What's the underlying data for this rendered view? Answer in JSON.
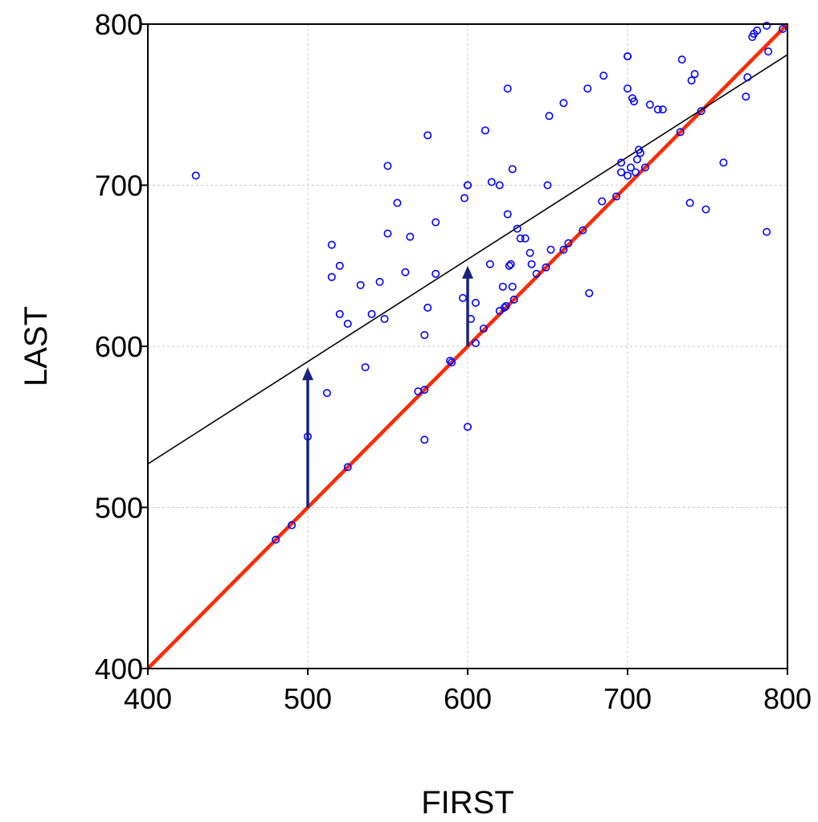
{
  "chart_data": {
    "type": "scatter",
    "title": "",
    "xlabel": "FIRST",
    "ylabel": "LAST",
    "xlim": [
      400,
      800
    ],
    "ylim": [
      400,
      800
    ],
    "x_ticks": [
      400,
      500,
      600,
      700,
      800
    ],
    "y_ticks": [
      400,
      500,
      600,
      700,
      800
    ],
    "grid": true,
    "colors": {
      "points": "#0000ff",
      "identity_line": "#ff2a00",
      "fit_line": "#000000",
      "arrows": "#1a237e",
      "grid": "#c8c8c8"
    },
    "lines": [
      {
        "kind": "identity",
        "x": [
          400,
          800
        ],
        "y": [
          400,
          800
        ]
      },
      {
        "kind": "fit",
        "x": [
          400,
          800
        ],
        "y": [
          527,
          781
        ]
      }
    ],
    "arrows": [
      {
        "x": 500,
        "y_from": 500,
        "y_to": 587
      },
      {
        "x": 600,
        "y_from": 600,
        "y_to": 650
      }
    ],
    "points": [
      [
        430,
        706
      ],
      [
        480,
        480
      ],
      [
        490,
        489
      ],
      [
        500,
        544
      ],
      [
        512,
        571
      ],
      [
        515,
        663
      ],
      [
        515,
        643
      ],
      [
        520,
        650
      ],
      [
        520,
        620
      ],
      [
        525,
        525
      ],
      [
        525,
        614
      ],
      [
        533,
        638
      ],
      [
        536,
        587
      ],
      [
        540,
        620
      ],
      [
        545,
        640
      ],
      [
        548,
        617
      ],
      [
        550,
        670
      ],
      [
        550,
        712
      ],
      [
        556,
        689
      ],
      [
        561,
        646
      ],
      [
        564,
        668
      ],
      [
        569,
        572
      ],
      [
        573,
        573
      ],
      [
        573,
        542
      ],
      [
        573,
        607
      ],
      [
        575,
        624
      ],
      [
        575,
        731
      ],
      [
        580,
        677
      ],
      [
        580,
        645
      ],
      [
        589,
        591
      ],
      [
        590,
        590
      ],
      [
        597,
        630
      ],
      [
        598,
        692
      ],
      [
        600,
        700
      ],
      [
        600,
        700
      ],
      [
        600,
        550
      ],
      [
        602,
        617
      ],
      [
        605,
        627
      ],
      [
        605,
        602
      ],
      [
        610,
        611
      ],
      [
        611,
        734
      ],
      [
        614,
        651
      ],
      [
        615,
        702
      ],
      [
        620,
        622
      ],
      [
        620,
        700
      ],
      [
        622,
        637
      ],
      [
        623,
        624
      ],
      [
        624,
        625
      ],
      [
        625,
        682
      ],
      [
        625,
        760
      ],
      [
        626,
        650
      ],
      [
        627,
        651
      ],
      [
        628,
        637
      ],
      [
        628,
        710
      ],
      [
        629,
        629
      ],
      [
        631,
        673
      ],
      [
        633,
        667
      ],
      [
        636,
        667
      ],
      [
        639,
        658
      ],
      [
        640,
        651
      ],
      [
        643,
        645
      ],
      [
        649,
        649
      ],
      [
        650,
        700
      ],
      [
        651,
        743
      ],
      [
        652,
        660
      ],
      [
        660,
        660
      ],
      [
        660,
        751
      ],
      [
        663,
        664
      ],
      [
        672,
        672
      ],
      [
        675,
        760
      ],
      [
        676,
        633
      ],
      [
        684,
        690
      ],
      [
        685,
        768
      ],
      [
        693,
        693
      ],
      [
        696,
        714
      ],
      [
        696,
        708
      ],
      [
        700,
        780
      ],
      [
        700,
        780
      ],
      [
        700,
        760
      ],
      [
        700,
        706
      ],
      [
        702,
        711
      ],
      [
        703,
        754
      ],
      [
        704,
        752
      ],
      [
        705,
        708
      ],
      [
        706,
        716
      ],
      [
        707,
        722
      ],
      [
        708,
        720
      ],
      [
        711,
        711
      ],
      [
        714,
        750
      ],
      [
        719,
        747
      ],
      [
        722,
        747
      ],
      [
        733,
        733
      ],
      [
        734,
        778
      ],
      [
        739,
        689
      ],
      [
        740,
        765
      ],
      [
        742,
        769
      ],
      [
        746,
        746
      ],
      [
        749,
        685
      ],
      [
        760,
        714
      ],
      [
        774,
        755
      ],
      [
        775,
        767
      ],
      [
        778,
        792
      ],
      [
        779,
        794
      ],
      [
        781,
        796
      ],
      [
        787,
        671
      ],
      [
        787,
        799
      ],
      [
        788,
        783
      ],
      [
        797,
        797
      ]
    ]
  }
}
